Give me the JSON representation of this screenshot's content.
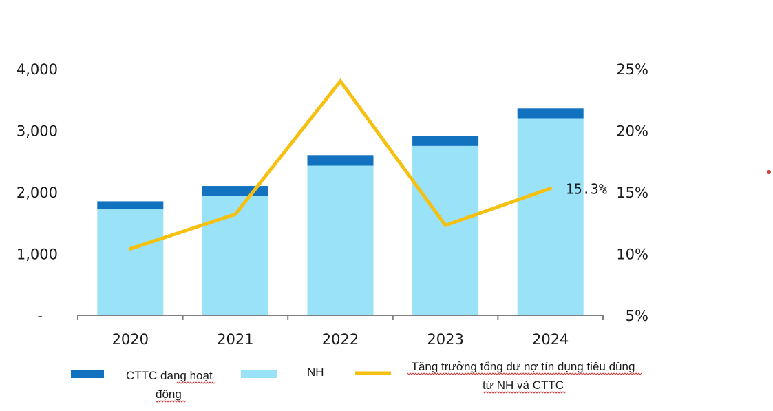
{
  "chart_data": {
    "type": "bar",
    "stacked": true,
    "categories": [
      "2020",
      "2021",
      "2022",
      "2023",
      "2024"
    ],
    "series": [
      {
        "name": "NH",
        "axis": "left",
        "type": "bar",
        "color": "#99e2f8",
        "values": [
          1720,
          1940,
          2430,
          2750,
          3190
        ]
      },
      {
        "name": "CTTC đang hoạt động",
        "axis": "left",
        "type": "bar",
        "color": "#1272c0",
        "values": [
          130,
          160,
          170,
          160,
          170
        ]
      },
      {
        "name": "Tăng trưởng tổng dư nợ tín dụng tiêu dùng từ NH và CTTC",
        "axis": "right",
        "type": "line",
        "color": "#f5c010",
        "values": [
          10.4,
          13.2,
          24.0,
          12.3,
          15.3
        ]
      }
    ],
    "y_left": {
      "ylim": [
        0,
        4000
      ],
      "ticks": [
        0,
        1000,
        2000,
        3000,
        4000
      ],
      "tick_labels": [
        "-",
        "1,000",
        "2,000",
        "3,000",
        "4,000"
      ]
    },
    "y_right": {
      "ylim": [
        5,
        25
      ],
      "ticks": [
        5,
        10,
        15,
        20,
        25
      ],
      "tick_labels": [
        "5%",
        "10%",
        "15%",
        "20%",
        "25%"
      ]
    },
    "annotations": [
      {
        "series": 2,
        "index": 4,
        "text": "15.3%"
      }
    ],
    "legend": {
      "position": "bottom",
      "items": [
        {
          "lines": [
            "CTTC đang hoạt",
            "động"
          ],
          "color": "#1272c0",
          "kind": "box"
        },
        {
          "lines": [
            "NH"
          ],
          "color": "#99e2f8",
          "kind": "box"
        },
        {
          "lines": [
            "Tăng trưởng tổng dư nợ tín dụng tiêu dùng",
            "từ NH và CTTC"
          ],
          "color": "#f5c010",
          "kind": "line"
        }
      ]
    },
    "title": "",
    "xlabel": "",
    "ylabel": "",
    "grid": false
  },
  "colors": {
    "axis": "#808080",
    "marker_dot": "#d23b3b"
  }
}
